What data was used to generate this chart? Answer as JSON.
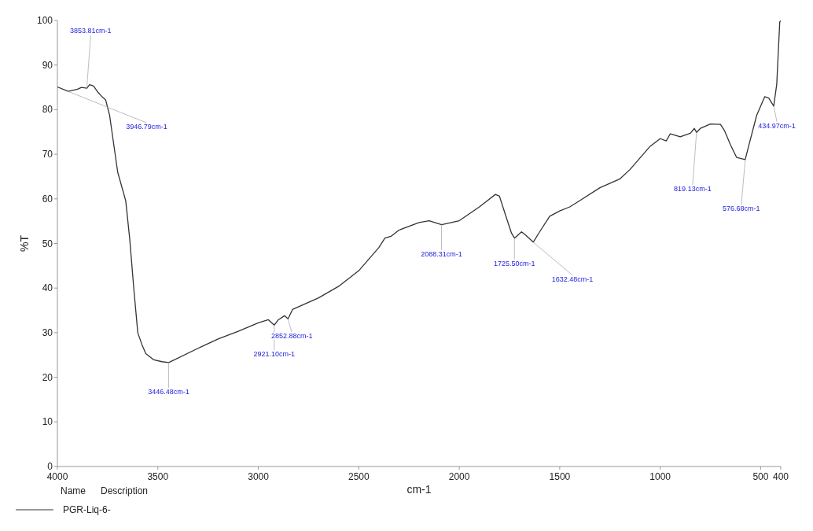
{
  "chart_data": {
    "type": "line",
    "xlabel": "cm-1",
    "ylabel": "%T",
    "legend_title": "Name",
    "legend": "bottom left",
    "xlim": [
      4000,
      400
    ],
    "xticks": [
      4000,
      3500,
      3000,
      2500,
      2000,
      1500,
      1000,
      500,
      400
    ],
    "ylim": [
      0,
      100
    ],
    "yticks": [
      0,
      10,
      20,
      30,
      40,
      50,
      60,
      70,
      80,
      90,
      100
    ],
    "grid": false,
    "marker": "none",
    "line_style": "solid",
    "series": [
      {
        "name": "PGR-Liq-6-",
        "color": "#333333",
        "x": [
          4000,
          3946,
          3900,
          3880,
          3853,
          3840,
          3820,
          3800,
          3780,
          3760,
          3740,
          3700,
          3660,
          3640,
          3620,
          3600,
          3580,
          3560,
          3520,
          3480,
          3446,
          3300,
          3200,
          3100,
          3000,
          2950,
          2921,
          2900,
          2870,
          2852,
          2830,
          2700,
          2600,
          2500,
          2400,
          2370,
          2340,
          2300,
          2200,
          2150,
          2088,
          2000,
          1900,
          1820,
          1800,
          1770,
          1740,
          1725,
          1690,
          1670,
          1632,
          1600,
          1550,
          1500,
          1450,
          1400,
          1300,
          1200,
          1150,
          1100,
          1050,
          1000,
          970,
          950,
          900,
          850,
          830,
          819,
          800,
          750,
          700,
          680,
          650,
          620,
          577,
          560,
          520,
          480,
          460,
          435,
          420,
          405,
          400
        ],
        "values": [
          85.1,
          84.1,
          84.6,
          85,
          84.8,
          85.6,
          85.3,
          84,
          83,
          82.2,
          78.7,
          66,
          59.6,
          51,
          40,
          30,
          27.4,
          25.3,
          23.9,
          23.5,
          23.3,
          26.5,
          28.6,
          30.3,
          32.2,
          32.9,
          31.7,
          32.9,
          33.8,
          33.1,
          35.2,
          37.8,
          40.4,
          43.9,
          49.1,
          51.2,
          51.6,
          53,
          54.7,
          55.1,
          54.2,
          55.1,
          58.2,
          61,
          60.6,
          56.4,
          52.3,
          51.2,
          52.6,
          51.9,
          50.3,
          52.6,
          56.1,
          57.3,
          58.2,
          59.6,
          62.5,
          64.5,
          66.6,
          69.2,
          71.8,
          73.5,
          73,
          74.6,
          73.9,
          74.7,
          75.8,
          74.9,
          75.8,
          76.8,
          76.7,
          75.3,
          72.1,
          69.3,
          68.8,
          71.8,
          78.7,
          82.9,
          82.6,
          80.8,
          85.7,
          99.7,
          99.9
        ]
      }
    ],
    "annotations": [
      {
        "text": "Description"
      },
      {
        "text": "3853.81cm-1",
        "x": 3853.81,
        "y": 84.8
      },
      {
        "text": "3946.79cm-1",
        "x": 3946.79,
        "y": 84.1
      },
      {
        "text": "3446.48cm-1",
        "x": 3446.48,
        "y": 23.3
      },
      {
        "text": "2921.10cm-1",
        "x": 2921.1,
        "y": 31.7
      },
      {
        "text": "2852.88cm-1",
        "x": 2852.88,
        "y": 33.1
      },
      {
        "text": "2088.31cm-1",
        "x": 2088.31,
        "y": 54.2
      },
      {
        "text": "1725.50cm-1",
        "x": 1725.5,
        "y": 51.2
      },
      {
        "text": "1632.48cm-1",
        "x": 1632.48,
        "y": 50.3
      },
      {
        "text": "819.13cm-1",
        "x": 819.13,
        "y": 74.9
      },
      {
        "text": "576.68cm-1",
        "x": 576.68,
        "y": 68.8
      },
      {
        "text": "434.97cm-1",
        "x": 434.97,
        "y": 80.8
      }
    ]
  }
}
